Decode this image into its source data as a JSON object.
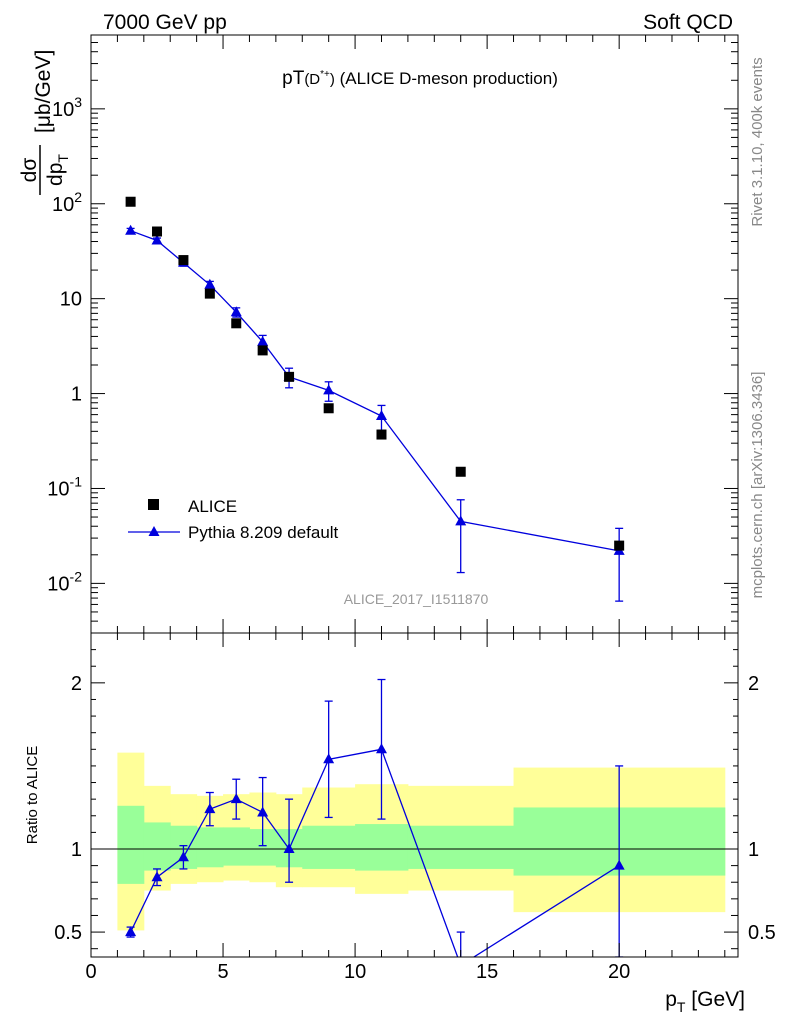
{
  "header": {
    "left_label": "7000 GeV pp",
    "right_label": "Soft QCD",
    "title": "pT(D*+) (ALICE D-meson production)",
    "analysis_id": "ALICE_2017_I1511870",
    "side_label_top": "Rivet 3.1.10,  400k events",
    "side_label_bottom": "mcplots.cern.ch [arXiv:1306.3436]"
  },
  "colors": {
    "data": "#000000",
    "mc": "#0000dd",
    "band_inner": "#99ff99",
    "band_outer": "#ffff99",
    "side_text": "#888888"
  },
  "chart_data": [
    {
      "type": "scatter",
      "panel": "main",
      "ylabel": "dσ/dpT [μb/GeV]",
      "y_scale": "log",
      "xlim": [
        0,
        24.5
      ],
      "ylim": [
        0.003,
        6000
      ],
      "y_ticks": [
        {
          "value": 0.01,
          "label": "10^-2"
        },
        {
          "value": 0.1,
          "label": "10^-1"
        },
        {
          "value": 1,
          "label": "1"
        },
        {
          "value": 10,
          "label": "10"
        },
        {
          "value": 100,
          "label": "10^2"
        },
        {
          "value": 1000,
          "label": "10^3"
        }
      ],
      "legend": {
        "position": "bottom-left",
        "entries": [
          "ALICE",
          "Pythia 8.209 default"
        ]
      },
      "series": [
        {
          "name": "ALICE",
          "marker": "square",
          "x": [
            1.5,
            2.5,
            3.5,
            4.5,
            5.5,
            6.5,
            7.5,
            9,
            11,
            14,
            20
          ],
          "y": [
            105,
            51,
            25.5,
            11.3,
            5.5,
            2.85,
            1.5,
            0.7,
            0.37,
            0.15,
            0.025
          ]
        },
        {
          "name": "Pythia 8.209 default",
          "marker": "triangle",
          "x": [
            1.5,
            2.5,
            3.5,
            4.5,
            5.5,
            6.5,
            7.5,
            9,
            11,
            14,
            20
          ],
          "y": [
            52,
            41,
            24,
            14,
            7.2,
            3.5,
            1.5,
            1.08,
            0.58,
            0.045,
            0.022
          ],
          "y_err_low": [
            3,
            2.5,
            2,
            1.2,
            0.8,
            0.6,
            0.35,
            0.25,
            0.17,
            0.032,
            0.0155
          ],
          "y_err_high": [
            3,
            2.5,
            2,
            1.2,
            0.8,
            0.6,
            0.35,
            0.25,
            0.17,
            0.031,
            0.016
          ]
        }
      ]
    },
    {
      "type": "line",
      "panel": "ratio",
      "ylabel": "Ratio to ALICE",
      "xlabel": "pT [GeV]",
      "xlim": [
        0,
        24.5
      ],
      "ylim": [
        0.35,
        2.3
      ],
      "x_ticks": [
        0,
        5,
        10,
        15,
        20
      ],
      "y_ticks": [
        0.5,
        1,
        2
      ],
      "reference_line": 1,
      "bands": {
        "edges": [
          1,
          2,
          3,
          4,
          5,
          6,
          7,
          8,
          10,
          12,
          16,
          24
        ],
        "inner_low": [
          0.79,
          0.87,
          0.88,
          0.89,
          0.9,
          0.9,
          0.89,
          0.88,
          0.87,
          0.88,
          0.84
        ],
        "inner_high": [
          1.26,
          1.16,
          1.14,
          1.13,
          1.13,
          1.12,
          1.12,
          1.14,
          1.15,
          1.14,
          1.25
        ],
        "outer_low": [
          0.51,
          0.75,
          0.79,
          0.8,
          0.81,
          0.8,
          0.77,
          0.77,
          0.73,
          0.75,
          0.62
        ],
        "outer_high": [
          1.58,
          1.38,
          1.33,
          1.32,
          1.33,
          1.34,
          1.33,
          1.37,
          1.39,
          1.38,
          1.49
        ]
      },
      "series": [
        {
          "name": "Pythia 8.209 default",
          "x": [
            1.5,
            2.5,
            3.5,
            4.5,
            5.5,
            6.5,
            7.5,
            9,
            11,
            14,
            20
          ],
          "y": [
            0.5,
            0.83,
            0.95,
            1.24,
            1.3,
            1.22,
            1.0,
            1.54,
            1.6,
            0.3,
            0.9
          ],
          "y_err_low": [
            0.03,
            0.05,
            0.07,
            0.1,
            0.12,
            0.2,
            0.2,
            0.35,
            0.42,
            0.2,
            0.55
          ],
          "y_err_high": [
            0.03,
            0.05,
            0.07,
            0.1,
            0.12,
            0.21,
            0.3,
            0.35,
            0.42,
            0.2,
            0.6
          ]
        }
      ]
    }
  ]
}
